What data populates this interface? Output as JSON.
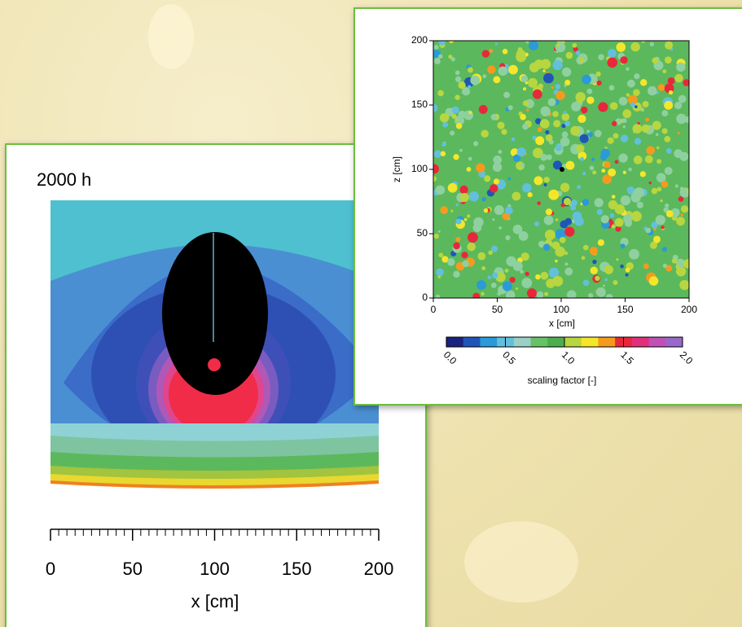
{
  "left_panel": {
    "label": "2000 h",
    "x_axis": {
      "label": "x [cm]",
      "xlim": [
        0,
        200
      ],
      "ticks": [
        0,
        50,
        100,
        150,
        200
      ]
    }
  },
  "right_panel": {
    "x_axis": {
      "label": "x [cm]",
      "xlim": [
        0,
        200
      ],
      "ticks": [
        0,
        50,
        100,
        150,
        200
      ]
    },
    "z_axis": {
      "label": "z [cm]",
      "zlim": [
        0,
        200
      ],
      "ticks": [
        0,
        50,
        100,
        150,
        200
      ]
    },
    "colorbar": {
      "label": "scaling factor [-]",
      "lim": [
        0,
        2
      ],
      "ticks": [
        {
          "value": 0,
          "label": "0.0"
        },
        {
          "value": 0.5,
          "label": "0.5"
        },
        {
          "value": 1,
          "label": "1.0"
        },
        {
          "value": 1.5,
          "label": "1.5"
        },
        {
          "value": 2,
          "label": "2.0"
        }
      ],
      "colors": [
        "#1a237e",
        "#1f55b8",
        "#2a9ad8",
        "#62c0dc",
        "#9ad0c8",
        "#66c266",
        "#4cae4c",
        "#b8d640",
        "#f5e62a",
        "#f59a1e",
        "#e8283a",
        "#e0307a",
        "#c050b8",
        "#9a68c8"
      ]
    }
  }
}
